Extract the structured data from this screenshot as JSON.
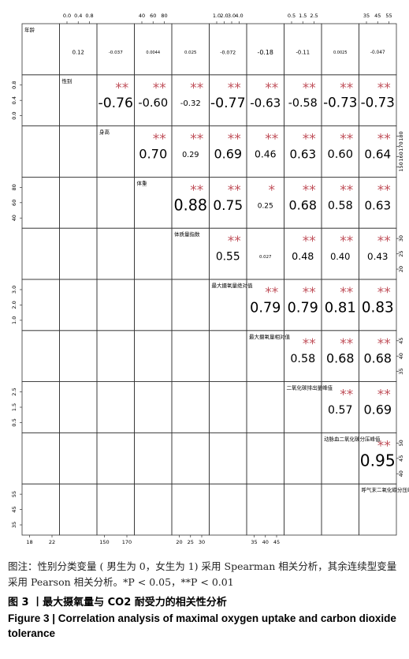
{
  "figure": {
    "variables": [
      {
        "label": "年龄",
        "col_ticks": [
          "18",
          "22"
        ],
        "row_ticks": []
      },
      {
        "label": "性别",
        "col_ticks": [
          "0.0",
          "0.4",
          "0.8"
        ],
        "row_ticks": [
          "0.0",
          "0.4",
          "0.8"
        ]
      },
      {
        "label": "身高",
        "col_ticks": [
          "150",
          "170"
        ],
        "row_ticks": [
          "150",
          "160",
          "170",
          "180"
        ]
      },
      {
        "label": "体重",
        "col_ticks": [
          "40",
          "60",
          "80"
        ],
        "row_ticks": [
          "40",
          "60",
          "80"
        ]
      },
      {
        "label": "体质量指数",
        "col_ticks": [
          "20",
          "25",
          "30"
        ],
        "row_ticks": [
          "20",
          "25",
          "30"
        ]
      },
      {
        "label": "最大摄氧量绝对值",
        "col_ticks": [
          "1.0",
          "2.0",
          "3.0",
          "4.0"
        ],
        "row_ticks": [
          "1.0",
          "2.0",
          "3.0"
        ]
      },
      {
        "label": "最大摄氧量相对值",
        "col_ticks": [
          "35",
          "40",
          "45"
        ],
        "row_ticks": [
          "35",
          "40",
          "45"
        ]
      },
      {
        "label": "二氧化碳排出量峰值",
        "col_ticks": [
          "0.5",
          "1.5",
          "2.5"
        ],
        "row_ticks": [
          "0.5",
          "1.5",
          "2.5"
        ]
      },
      {
        "label": "动脉血二氧化碳分压峰值",
        "col_ticks": [],
        "row_ticks": [
          "40",
          "45",
          "50"
        ]
      },
      {
        "label": "呼气末二氧化碳分压峰值",
        "col_ticks": [
          "35",
          "45",
          "55"
        ],
        "row_ticks": [
          "35",
          "45",
          "55"
        ]
      }
    ],
    "correlations": [
      [
        {
          "r": "0.12"
        },
        {
          "r": "-0.037"
        },
        {
          "r": "0.0044"
        },
        {
          "r": "0.025"
        },
        {
          "r": "-0.072"
        },
        {
          "r": "-0.18"
        },
        {
          "r": "-0.11"
        },
        {
          "r": "0.0025"
        },
        {
          "r": "-0.047"
        }
      ],
      [
        {
          "r": "-0.76",
          "stars": "**"
        },
        {
          "r": "-0.60",
          "stars": "**"
        },
        {
          "r": "-0.32",
          "stars": "**"
        },
        {
          "r": "-0.77",
          "stars": "**"
        },
        {
          "r": "-0.63",
          "stars": "**"
        },
        {
          "r": "-0.58",
          "stars": "**"
        },
        {
          "r": "-0.73",
          "stars": "**"
        },
        {
          "r": "-0.73",
          "stars": "**"
        }
      ],
      [
        {
          "r": "0.70",
          "stars": "**"
        },
        {
          "r": "0.29",
          "stars": "**"
        },
        {
          "r": "0.69",
          "stars": "**"
        },
        {
          "r": "0.46",
          "stars": "**"
        },
        {
          "r": "0.63",
          "stars": "**"
        },
        {
          "r": "0.60",
          "stars": "**"
        },
        {
          "r": "0.64",
          "stars": "**"
        }
      ],
      [
        {
          "r": "0.88",
          "stars": "**"
        },
        {
          "r": "0.75",
          "stars": "**"
        },
        {
          "r": "0.25",
          "stars": "*"
        },
        {
          "r": "0.68",
          "stars": "**"
        },
        {
          "r": "0.58",
          "stars": "**"
        },
        {
          "r": "0.63",
          "stars": "**"
        }
      ],
      [
        {
          "r": "0.55",
          "stars": "**"
        },
        {
          "r": "0.027"
        },
        {
          "r": "0.48",
          "stars": "**"
        },
        {
          "r": "0.40",
          "stars": "**"
        },
        {
          "r": "0.43",
          "stars": "**"
        }
      ],
      [
        {
          "r": "0.79",
          "stars": "**"
        },
        {
          "r": "0.79",
          "stars": "**"
        },
        {
          "r": "0.81",
          "stars": "**"
        },
        {
          "r": "0.83",
          "stars": "**"
        }
      ],
      [
        {
          "r": "0.58",
          "stars": "**"
        },
        {
          "r": "0.68",
          "stars": "**"
        },
        {
          "r": "0.68",
          "stars": "**"
        }
      ],
      [
        {
          "r": "0.57",
          "stars": "**"
        },
        {
          "r": "0.69",
          "stars": "**"
        }
      ],
      [
        {
          "r": "0.95",
          "stars": "**"
        }
      ]
    ],
    "note": "图注：性别分类变量 ( 男生为 0，女生为 1) 采用 Spearman 相关分析，其余连续型变量采用 Pearson 相关分析。*P < 0.05，**P < 0.01",
    "title_cn": "图 3 丨最大摄氧量与 CO2 耐受力的相关性分析",
    "title_en": "Figure 3 | Correlation analysis of maximal oxygen uptake and carbon dioxide tolerance"
  }
}
